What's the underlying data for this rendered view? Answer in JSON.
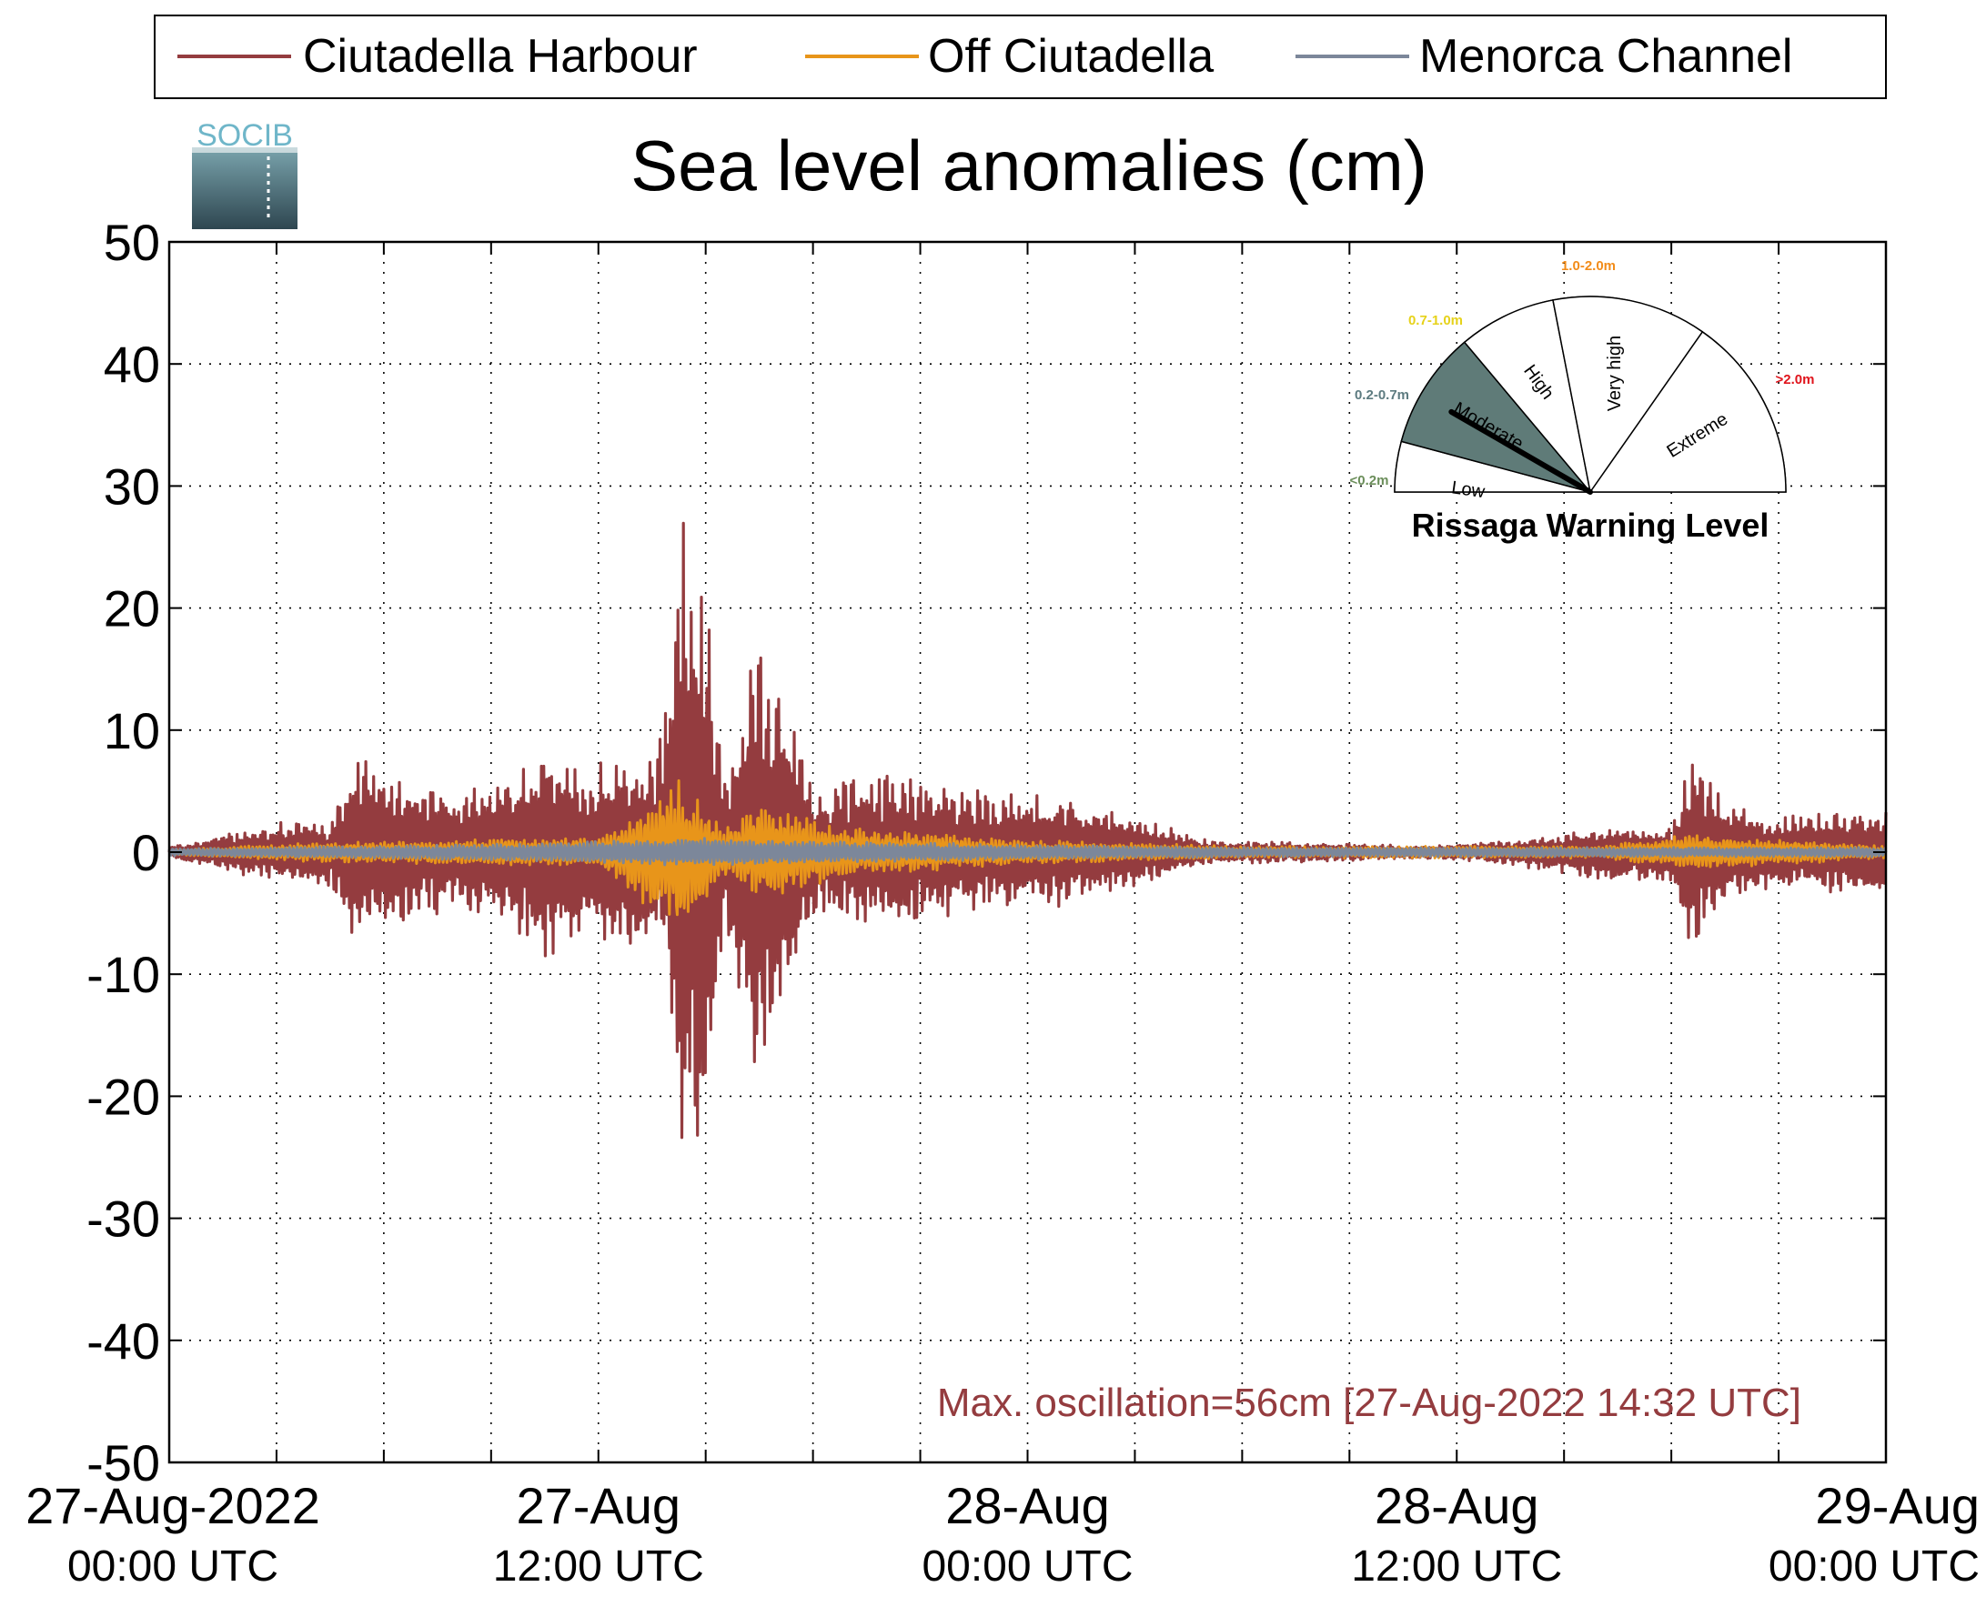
{
  "chart_data": {
    "type": "line",
    "title": "Sea level anomalies (cm)",
    "xlabel": "",
    "ylabel": "",
    "ylim": [
      -50,
      50
    ],
    "yticks": [
      50,
      40,
      30,
      20,
      10,
      0,
      -10,
      -20,
      -30,
      -40,
      -50
    ],
    "xlim_hours": [
      0,
      48
    ],
    "grid": true,
    "legend_position": "top",
    "xtick_labels": [
      {
        "hour": 0,
        "date": "27-Aug-2022",
        "time": "00:00 UTC"
      },
      {
        "hour": 12,
        "date": "27-Aug",
        "time": "12:00 UTC"
      },
      {
        "hour": 24,
        "date": "28-Aug",
        "time": "00:00 UTC"
      },
      {
        "hour": 36,
        "date": "28-Aug",
        "time": "12:00 UTC"
      },
      {
        "hour": 48,
        "date": "29-Aug",
        "time": "00:00 UTC"
      }
    ],
    "series": [
      {
        "name": "Ciutadella Harbour",
        "color": "#943c3f",
        "envelope": [
          {
            "x": 0,
            "max": 0.5,
            "min": -0.5
          },
          {
            "x": 1.5,
            "max": 1.5,
            "min": -1.5
          },
          {
            "x": 3,
            "max": 2.5,
            "min": -2.5
          },
          {
            "x": 4.5,
            "max": 2.5,
            "min": -3
          },
          {
            "x": 5.2,
            "max": 8.8,
            "min": -7.5
          },
          {
            "x": 6.5,
            "max": 6,
            "min": -6
          },
          {
            "x": 8,
            "max": 5,
            "min": -5
          },
          {
            "x": 9.5,
            "max": 6.5,
            "min": -6
          },
          {
            "x": 10.5,
            "max": 9,
            "min": -9
          },
          {
            "x": 11.5,
            "max": 7,
            "min": -7
          },
          {
            "x": 13,
            "max": 8.5,
            "min": -8
          },
          {
            "x": 13.8,
            "max": 10,
            "min": -8
          },
          {
            "x": 14.3,
            "max": 28.5,
            "min": -27.3
          },
          {
            "x": 15,
            "max": 22,
            "min": -26.5
          },
          {
            "x": 15.5,
            "max": 6,
            "min": -6
          },
          {
            "x": 16.3,
            "max": 18,
            "min": -19
          },
          {
            "x": 17.2,
            "max": 14,
            "min": -13.5
          },
          {
            "x": 18,
            "max": 5,
            "min": -5
          },
          {
            "x": 19.5,
            "max": 7,
            "min": -6
          },
          {
            "x": 21,
            "max": 6,
            "min": -6
          },
          {
            "x": 23,
            "max": 5,
            "min": -4.5
          },
          {
            "x": 25,
            "max": 4.5,
            "min": -4.5
          },
          {
            "x": 27,
            "max": 3,
            "min": -3
          },
          {
            "x": 29,
            "max": 1,
            "min": -1
          },
          {
            "x": 32,
            "max": 0.8,
            "min": -0.8
          },
          {
            "x": 35,
            "max": 0.5,
            "min": -0.5
          },
          {
            "x": 37.5,
            "max": 1,
            "min": -1
          },
          {
            "x": 40,
            "max": 2,
            "min": -2.5
          },
          {
            "x": 42,
            "max": 2,
            "min": -2.5
          },
          {
            "x": 42.6,
            "max": 8.7,
            "min": -9
          },
          {
            "x": 43.5,
            "max": 4,
            "min": -4
          },
          {
            "x": 45,
            "max": 3,
            "min": -3
          },
          {
            "x": 48,
            "max": 3.5,
            "min": -4
          }
        ]
      },
      {
        "name": "Off Ciutadella",
        "color": "#e8951a",
        "envelope": [
          {
            "x": 0,
            "max": 0.2,
            "min": -0.2
          },
          {
            "x": 4,
            "max": 0.8,
            "min": -0.8
          },
          {
            "x": 8,
            "max": 1,
            "min": -1
          },
          {
            "x": 12,
            "max": 1.2,
            "min": -1.2
          },
          {
            "x": 14.3,
            "max": 6,
            "min": -7
          },
          {
            "x": 15.5,
            "max": 2,
            "min": -2
          },
          {
            "x": 16.5,
            "max": 4,
            "min": -4
          },
          {
            "x": 19,
            "max": 2,
            "min": -2
          },
          {
            "x": 24,
            "max": 1,
            "min": -1
          },
          {
            "x": 30,
            "max": 0.5,
            "min": -0.5
          },
          {
            "x": 40,
            "max": 0.5,
            "min": -0.5
          },
          {
            "x": 42.6,
            "max": 1.5,
            "min": -1.5
          },
          {
            "x": 48,
            "max": 0.5,
            "min": -0.5
          }
        ]
      },
      {
        "name": "Menorca Channel",
        "color": "#7c879a",
        "envelope": [
          {
            "x": 0,
            "max": 0.3,
            "min": -0.3
          },
          {
            "x": 10,
            "max": 0.7,
            "min": -0.7
          },
          {
            "x": 14.3,
            "max": 1.2,
            "min": -1.2
          },
          {
            "x": 20,
            "max": 0.8,
            "min": -0.8
          },
          {
            "x": 30,
            "max": 0.4,
            "min": -0.4
          },
          {
            "x": 48,
            "max": 0.4,
            "min": -0.4
          }
        ]
      }
    ],
    "annotation": {
      "text": "Max. oscillation=56cm [27-Aug-2022 14:32 UTC]",
      "color": "#943c3f"
    }
  },
  "logo": {
    "text": "SOCIB"
  },
  "gauge": {
    "title": "Rissaga Warning Level",
    "level": "Moderate",
    "segments": [
      {
        "label": "Low",
        "range": "<0.2m",
        "range_color": "#6b8e5a"
      },
      {
        "label": "Moderate",
        "range": "0.2-0.7m",
        "range_color": "#5d7b80"
      },
      {
        "label": "High",
        "range": "0.7-1.0m",
        "range_color": "#e6d21a"
      },
      {
        "label": "Very high",
        "range": "1.0-2.0m",
        "range_color": "#f28c1a"
      },
      {
        "label": "Extreme",
        "range": ">2.0m",
        "range_color": "#e0141c"
      }
    ],
    "active_fill": "#5f7b78"
  }
}
